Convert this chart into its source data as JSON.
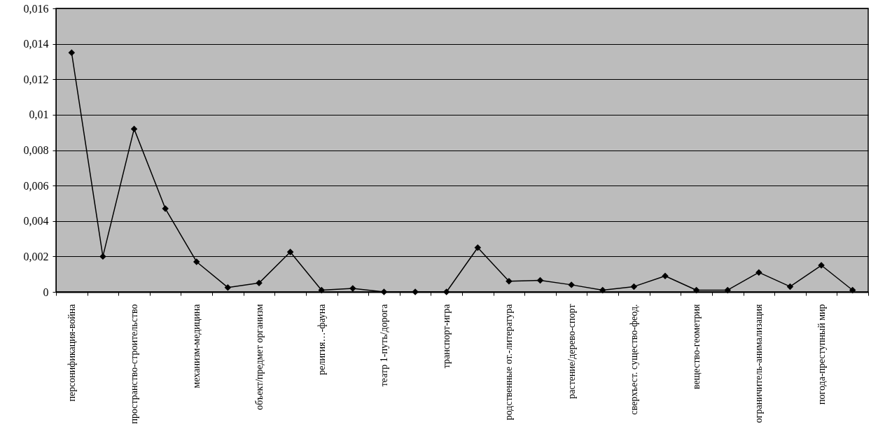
{
  "chart_data": {
    "type": "line",
    "categories": [
      "персонификация-война",
      null,
      "пространство-строительство",
      null,
      "механизм-медицина",
      null,
      "объект/предмет организм",
      null,
      "религия…-фауна",
      null,
      "театр 1-путь/дорога",
      null,
      "транспорт-игра",
      null,
      "родственные от.-литература",
      null,
      "растение/дерево-спорт",
      null,
      "сверхъест. существо-феод.",
      null,
      "вещество-геометрия",
      null,
      "ограничитель-анимализация",
      null,
      "погода-преступный мир",
      null
    ],
    "series": [
      {
        "color": "#000000",
        "values": [
          0.0135,
          0.002,
          0.0092,
          0.0047,
          0.0017,
          0.00025,
          0.0005,
          0.00225,
          0.0001,
          0.0002,
          0,
          0,
          0,
          0.0025,
          0.0006,
          0.00065,
          0.0004,
          0.0001,
          0.0003,
          0.0009,
          0.0001,
          0.0001,
          0.0011,
          0.0003,
          0.0015,
          0.0001
        ]
      }
    ],
    "ylim": [
      0,
      0.016
    ],
    "yticks": [
      0,
      {
        "value": 0.002,
        "label": "0,002"
      },
      {
        "value": 0.004,
        "label": "0,004"
      },
      {
        "value": 0.006,
        "label": "0,006"
      },
      {
        "value": 0.008,
        "label": "0,008"
      },
      {
        "value": 0.01,
        "label": "0,01"
      },
      {
        "value": 0.012,
        "label": "0,012"
      },
      {
        "value": 0.014,
        "label": "0,014"
      },
      {
        "value": 0.016,
        "label": "0,016"
      }
    ],
    "grid": "y",
    "marker": "diamond",
    "line_style": "solid"
  }
}
